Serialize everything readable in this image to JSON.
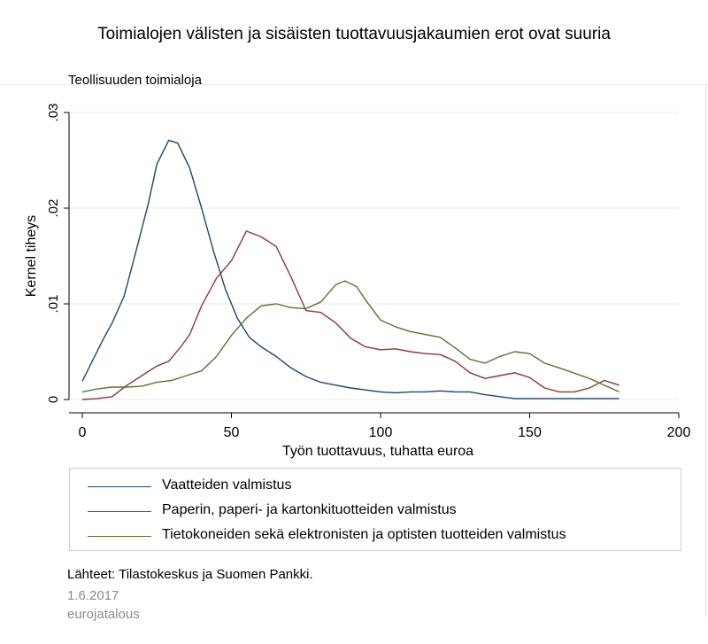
{
  "title": "Toimialojen välisten ja sisäisten tuottavuusjakaumien erot ovat suuria",
  "subtitle": "Teollisuuden toimialoja",
  "source": "Lähteet: Tilastokeskus ja Suomen Pankki.",
  "date": "1.6.2017",
  "brand": "eurojatalous",
  "colors": {
    "blue": "#1a476f",
    "red": "#90353b",
    "green": "#55752f",
    "grid": "#e8e8e8",
    "axis": "#000000"
  },
  "chart_data": {
    "type": "line",
    "xlabel": "Työn tuottavuus, tuhatta euroa",
    "ylabel": "Kernel tiheys",
    "xlim": [
      0,
      200
    ],
    "ylim": [
      0,
      0.03
    ],
    "x_ticks": [
      0,
      50,
      100,
      150,
      200
    ],
    "x_tick_labels": [
      "0",
      "50",
      "100",
      "150",
      "200"
    ],
    "y_ticks": [
      0,
      0.01,
      0.02,
      0.03
    ],
    "y_tick_labels": [
      "0",
      ".01",
      ".02",
      ".03"
    ],
    "grid": true,
    "legend_position": "bottom",
    "series": [
      {
        "name": "Vaatteiden valmistus",
        "color": "#1a476f",
        "x": [
          0,
          3,
          7,
          10,
          14,
          18,
          22,
          25,
          29,
          32,
          36,
          40,
          44,
          48,
          52,
          56,
          60,
          65,
          70,
          75,
          80,
          85,
          90,
          95,
          100,
          105,
          110,
          115,
          120,
          125,
          130,
          135,
          140,
          145,
          150,
          160,
          170,
          180
        ],
        "y": [
          0.0019,
          0.0038,
          0.0063,
          0.008,
          0.0108,
          0.0155,
          0.0203,
          0.0246,
          0.0271,
          0.0268,
          0.0242,
          0.02,
          0.0155,
          0.0115,
          0.0085,
          0.0065,
          0.0055,
          0.0045,
          0.0033,
          0.0024,
          0.0018,
          0.0015,
          0.0012,
          0.001,
          0.0008,
          0.0007,
          0.0008,
          0.0008,
          0.0009,
          0.0008,
          0.0008,
          0.0005,
          0.0003,
          0.0001,
          0.0001,
          0.0001,
          0.0001,
          0.0001
        ]
      },
      {
        "name": "Paperin, paperi- ja kartonkituotteiden valmistus",
        "color": "#90353b",
        "x": [
          0,
          5,
          10,
          15,
          20,
          25,
          29,
          33,
          36,
          40,
          45,
          50,
          55,
          60,
          65,
          70,
          75,
          80,
          85,
          90,
          95,
          100,
          105,
          110,
          115,
          120,
          125,
          130,
          135,
          140,
          145,
          150,
          155,
          160,
          165,
          170,
          175,
          180
        ],
        "y": [
          0.0,
          0.0001,
          0.0003,
          0.0015,
          0.0025,
          0.0035,
          0.004,
          0.0055,
          0.0068,
          0.0098,
          0.0127,
          0.0145,
          0.0176,
          0.017,
          0.016,
          0.0128,
          0.0093,
          0.0091,
          0.008,
          0.0064,
          0.0055,
          0.0052,
          0.0053,
          0.005,
          0.0048,
          0.0047,
          0.004,
          0.0028,
          0.0022,
          0.0025,
          0.0028,
          0.0023,
          0.0012,
          0.0008,
          0.0008,
          0.0012,
          0.002,
          0.0015
        ]
      },
      {
        "name": "Tietokoneiden sekä elektronisten ja optisten tuotteiden valmistus",
        "color": "#55752f",
        "x": [
          0,
          5,
          10,
          15,
          20,
          25,
          30,
          35,
          40,
          45,
          50,
          55,
          60,
          65,
          70,
          75,
          80,
          85,
          88,
          92,
          95,
          100,
          105,
          110,
          115,
          120,
          125,
          130,
          135,
          140,
          145,
          150,
          155,
          160,
          170,
          180
        ],
        "y": [
          0.0008,
          0.0011,
          0.0013,
          0.0013,
          0.0014,
          0.0018,
          0.002,
          0.0025,
          0.003,
          0.0045,
          0.0067,
          0.0085,
          0.0098,
          0.01,
          0.0096,
          0.0095,
          0.0102,
          0.012,
          0.0124,
          0.0118,
          0.0104,
          0.0083,
          0.0076,
          0.0071,
          0.0068,
          0.0065,
          0.0054,
          0.0042,
          0.0038,
          0.0045,
          0.005,
          0.0048,
          0.0038,
          0.0033,
          0.0022,
          0.0008
        ]
      }
    ]
  }
}
